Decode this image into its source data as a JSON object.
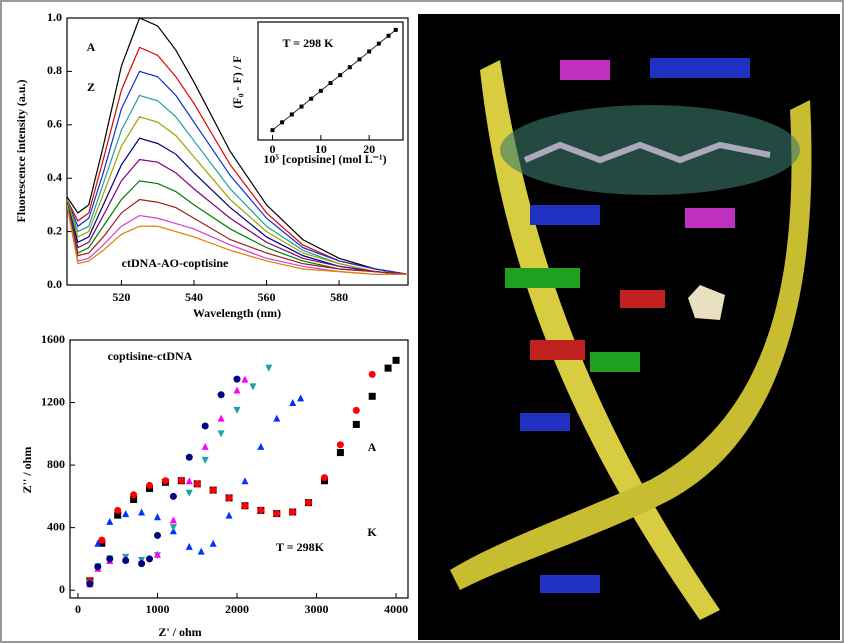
{
  "chart_data": [
    {
      "type": "line",
      "xlabel": "Wavelength (nm)",
      "ylabel": "Fluorescence intensity (a.u.)",
      "annotations": [
        "A",
        "Z",
        "ctDNA-AO-coptisine"
      ],
      "x": [
        505,
        508,
        511,
        515,
        520,
        525,
        530,
        535,
        540,
        550,
        560,
        570,
        580,
        590,
        599
      ],
      "xlim": [
        505,
        599
      ],
      "xticks": [
        520,
        540,
        560,
        580
      ],
      "ylim": [
        0,
        1.0
      ],
      "yticks": [
        {
          "value": 0,
          "label": "0.0"
        },
        0.2,
        0.4,
        0.6,
        0.8,
        {
          "value": 1,
          "label": "1.0"
        }
      ],
      "series": [
        {
          "color": "#000000",
          "values": [
            0.33,
            0.27,
            0.3,
            0.52,
            0.82,
            1.0,
            0.97,
            0.88,
            0.76,
            0.5,
            0.3,
            0.17,
            0.1,
            0.06,
            0.04
          ]
        },
        {
          "color": "#e00000",
          "values": [
            0.32,
            0.24,
            0.27,
            0.47,
            0.73,
            0.89,
            0.86,
            0.78,
            0.68,
            0.45,
            0.27,
            0.15,
            0.09,
            0.06,
            0.04
          ]
        },
        {
          "color": "#1030d0",
          "values": [
            0.32,
            0.22,
            0.25,
            0.42,
            0.66,
            0.8,
            0.78,
            0.71,
            0.61,
            0.41,
            0.25,
            0.14,
            0.09,
            0.06,
            0.04
          ]
        },
        {
          "color": "#20a0a0",
          "values": [
            0.32,
            0.2,
            0.22,
            0.38,
            0.58,
            0.71,
            0.69,
            0.63,
            0.54,
            0.36,
            0.22,
            0.13,
            0.08,
            0.05,
            0.04
          ]
        },
        {
          "color": "#a0a000",
          "values": [
            0.32,
            0.18,
            0.2,
            0.34,
            0.52,
            0.63,
            0.61,
            0.56,
            0.48,
            0.32,
            0.2,
            0.12,
            0.08,
            0.05,
            0.04
          ]
        },
        {
          "color": "#000080",
          "values": [
            0.31,
            0.16,
            0.18,
            0.3,
            0.45,
            0.55,
            0.53,
            0.49,
            0.42,
            0.29,
            0.18,
            0.11,
            0.07,
            0.05,
            0.04
          ]
        },
        {
          "color": "#800080",
          "values": [
            0.31,
            0.14,
            0.16,
            0.26,
            0.39,
            0.47,
            0.46,
            0.42,
            0.36,
            0.25,
            0.16,
            0.1,
            0.07,
            0.05,
            0.04
          ]
        },
        {
          "color": "#008000",
          "values": [
            0.31,
            0.12,
            0.14,
            0.22,
            0.32,
            0.39,
            0.38,
            0.35,
            0.3,
            0.21,
            0.14,
            0.09,
            0.06,
            0.05,
            0.04
          ]
        },
        {
          "color": "#a02020",
          "values": [
            0.3,
            0.11,
            0.12,
            0.18,
            0.27,
            0.32,
            0.31,
            0.29,
            0.25,
            0.17,
            0.12,
            0.08,
            0.06,
            0.05,
            0.04
          ]
        },
        {
          "color": "#d040d0",
          "values": [
            0.3,
            0.09,
            0.1,
            0.15,
            0.22,
            0.26,
            0.25,
            0.23,
            0.21,
            0.15,
            0.1,
            0.07,
            0.05,
            0.04,
            0.04
          ]
        },
        {
          "color": "#e08000",
          "values": [
            0.3,
            0.08,
            0.09,
            0.13,
            0.19,
            0.22,
            0.22,
            0.2,
            0.18,
            0.13,
            0.09,
            0.06,
            0.05,
            0.04,
            0.04
          ]
        }
      ]
    },
    {
      "type": "line",
      "xlabel": "10⁵ [coptisine] (mol L⁻¹)",
      "ylabel": "(F₀ - F) / F",
      "annotations": [
        "T = 298 K"
      ],
      "x": [
        0,
        2,
        4,
        6,
        8,
        10,
        12,
        14,
        16,
        18,
        20,
        22,
        24,
        25.5
      ],
      "xlim": [
        -3,
        27
      ],
      "xticks": [
        0,
        10,
        20
      ],
      "ylim": [
        -0.1,
        1.1
      ],
      "series": [
        {
          "color": "#000000",
          "marker": "square",
          "values": [
            0,
            0.08,
            0.16,
            0.24,
            0.32,
            0.4,
            0.48,
            0.56,
            0.64,
            0.72,
            0.8,
            0.88,
            0.96,
            1.02
          ]
        }
      ]
    },
    {
      "type": "scatter",
      "xlabel": "Z' / ohm",
      "ylabel": "Z'' / ohm",
      "annotations": [
        "coptisine-ctDNA",
        "T = 298K",
        "A",
        "K"
      ],
      "xlim": [
        -100,
        4150
      ],
      "xticks": [
        0,
        1000,
        2000,
        3000,
        4000
      ],
      "ylim": [
        -50,
        1600
      ],
      "yticks": [
        0,
        400,
        800,
        1200,
        1600
      ],
      "series": [
        {
          "color": "#000000",
          "marker": "square",
          "x": [
            150,
            300,
            500,
            700,
            900,
            1100,
            1300,
            1500,
            1700,
            1900,
            2100,
            2300,
            2500,
            2700,
            2900,
            3100,
            3300,
            3500,
            3700,
            3900,
            4000
          ],
          "values": [
            60,
            300,
            480,
            580,
            650,
            690,
            700,
            680,
            640,
            590,
            540,
            510,
            490,
            500,
            560,
            700,
            880,
            1060,
            1240,
            1420,
            1470
          ]
        },
        {
          "color": "#ff0000",
          "marker": "circle",
          "x": [
            150,
            300,
            500,
            700,
            900,
            1100,
            1300,
            1500,
            1700,
            1900,
            2100,
            2300,
            2500,
            2700,
            2900,
            3100,
            3300,
            3500,
            3700
          ],
          "values": [
            60,
            320,
            510,
            610,
            670,
            700,
            700,
            680,
            640,
            590,
            540,
            510,
            490,
            500,
            560,
            720,
            930,
            1150,
            1380
          ]
        },
        {
          "color": "#0033ff",
          "marker": "triangle",
          "x": [
            150,
            250,
            400,
            600,
            800,
            1000,
            1200,
            1400,
            1550,
            1700,
            1900,
            2100,
            2300,
            2500,
            2700,
            2800
          ],
          "values": [
            50,
            300,
            440,
            490,
            500,
            470,
            380,
            280,
            250,
            300,
            480,
            700,
            920,
            1100,
            1200,
            1230
          ]
        },
        {
          "color": "#20a0a0",
          "marker": "triangle-down",
          "x": [
            150,
            250,
            400,
            600,
            800,
            1000,
            1200,
            1400,
            1600,
            1800,
            2000,
            2200,
            2400
          ],
          "values": [
            40,
            150,
            200,
            210,
            190,
            220,
            400,
            620,
            830,
            1000,
            1150,
            1300,
            1420
          ]
        },
        {
          "color": "#ff00ff",
          "marker": "triangle",
          "x": [
            150,
            250,
            400,
            600,
            800,
            1000,
            1200,
            1400,
            1600,
            1800,
            2000,
            2100
          ],
          "values": [
            40,
            140,
            190,
            200,
            180,
            230,
            450,
            700,
            920,
            1100,
            1280,
            1350
          ]
        },
        {
          "color": "#000080",
          "marker": "circle",
          "x": [
            150,
            250,
            400,
            600,
            800,
            900,
            1000,
            1200,
            1400,
            1600,
            1800,
            2000
          ],
          "values": [
            40,
            150,
            200,
            190,
            170,
            200,
            350,
            600,
            850,
            1050,
            1250,
            1350
          ]
        }
      ]
    }
  ]
}
